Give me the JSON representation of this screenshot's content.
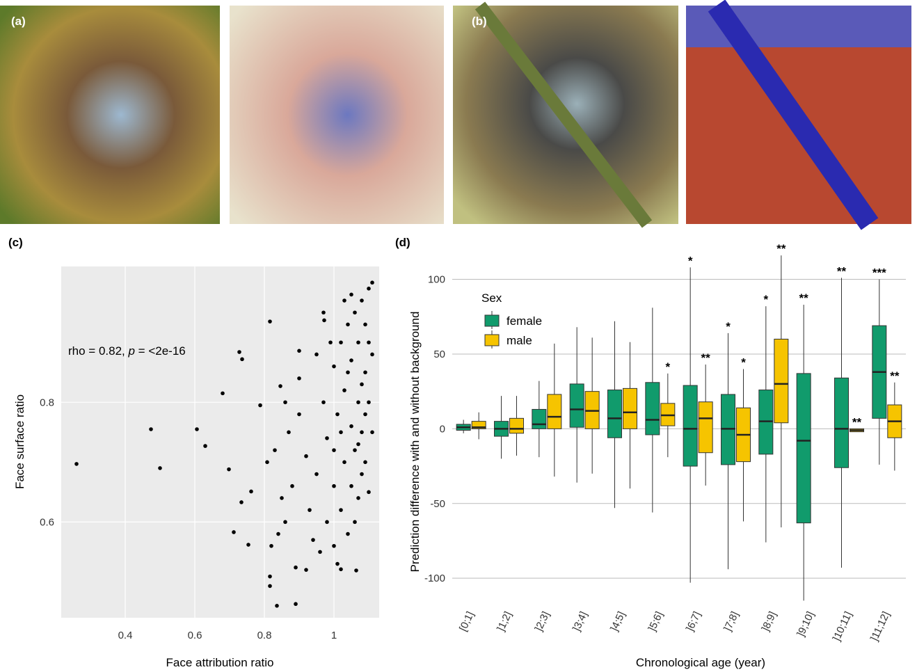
{
  "panel_labels": [
    "(a)",
    "(b)",
    "(c)",
    "(d)"
  ],
  "chart_data": [
    {
      "type": "scatter",
      "annotation": [
        "rho = 0.82, ",
        "p",
        " = <2e-16"
      ],
      "x_label": "Face attribution ratio",
      "y_label": "Face surface ratio",
      "xlim": [
        0.216,
        1.13
      ],
      "ylim": [
        0.44,
        1.027
      ],
      "xticks": [
        0.4,
        0.6,
        0.8,
        1.0
      ],
      "yticks": [
        0.6,
        0.8
      ],
      "grid": true,
      "color": "#000000",
      "x": [
        0.26,
        0.474,
        0.5,
        0.606,
        0.63,
        0.68,
        0.698,
        0.728,
        0.736,
        0.734,
        0.712,
        0.754,
        0.762,
        0.816,
        0.816,
        0.816,
        0.836,
        0.89,
        0.89,
        0.808,
        0.788,
        0.846,
        0.9,
        0.972,
        1.064,
        1.02,
        0.82,
        0.84,
        0.86,
        0.85,
        0.88,
        0.83,
        0.87,
        0.9,
        0.86,
        0.9,
        0.92,
        0.93,
        0.94,
        0.96,
        0.95,
        0.97,
        0.95,
        0.98,
        0.98,
        1.0,
        1.01,
        0.92,
        1.0,
        1.0,
        1.0,
        1.01,
        1.02,
        1.02,
        1.03,
        1.03,
        1.04,
        1.04,
        1.05,
        1.05,
        1.05,
        1.06,
        1.06,
        1.06,
        1.07,
        1.07,
        1.07,
        1.08,
        1.08,
        1.08,
        1.09,
        1.09,
        1.09,
        1.1,
        1.1,
        1.1,
        1.11,
        1.11,
        1.11,
        1.1,
        1.09,
        1.08,
        1.07,
        1.04,
        1.02,
        0.99,
        0.97,
        1.03,
        1.05
      ],
      "y": [
        0.697,
        0.755,
        0.69,
        0.755,
        0.727,
        0.815,
        0.688,
        0.884,
        0.872,
        0.633,
        0.583,
        0.562,
        0.651,
        0.935,
        0.509,
        0.493,
        0.46,
        0.463,
        0.524,
        0.7,
        0.795,
        0.827,
        0.886,
        0.937,
        0.519,
        0.521,
        0.56,
        0.58,
        0.6,
        0.64,
        0.66,
        0.72,
        0.75,
        0.78,
        0.8,
        0.84,
        0.71,
        0.62,
        0.57,
        0.55,
        0.68,
        0.8,
        0.88,
        0.74,
        0.6,
        0.56,
        0.53,
        0.52,
        0.66,
        0.72,
        0.86,
        0.78,
        0.62,
        0.9,
        0.7,
        0.82,
        0.58,
        0.93,
        0.66,
        0.76,
        0.87,
        0.6,
        0.72,
        0.95,
        0.64,
        0.8,
        0.9,
        0.68,
        0.75,
        0.97,
        0.7,
        0.85,
        0.93,
        0.65,
        0.8,
        0.99,
        0.75,
        0.88,
        1.0,
        0.9,
        0.78,
        0.83,
        0.73,
        0.85,
        0.75,
        0.9,
        0.95,
        0.97,
        0.98
      ]
    },
    {
      "type": "box",
      "x_label": "Chronological age (year)",
      "y_label": "Prediction difference with and without background",
      "legend_title": "Sex",
      "categories": [
        "[0;1]",
        "]1;2]",
        "]2;3]",
        "]3;4]",
        "]4;5]",
        "]5;6]",
        "]6;7]",
        "]7;8]",
        "]8;9]",
        "]9;10]",
        "]10;11]",
        "]11;12]"
      ],
      "ylim": [
        -119,
        124
      ],
      "yticks": [
        -100,
        -50,
        0,
        50,
        100
      ],
      "grid": true,
      "series": [
        {
          "name": "female",
          "color": "#119b6c",
          "low": [
            -3,
            -20,
            -19,
            -36,
            -53,
            -56,
            -103,
            -94,
            -76,
            -115,
            -93,
            -24
          ],
          "q1": [
            -1,
            -5,
            0,
            1,
            -6,
            -4,
            -25,
            -24,
            -17,
            -63,
            -26,
            7
          ],
          "median": [
            1,
            0,
            3,
            13,
            7,
            6,
            0,
            0,
            5,
            -8,
            0,
            38
          ],
          "q3": [
            3,
            5,
            13,
            30,
            26,
            31,
            29,
            23,
            26,
            37,
            34,
            69
          ],
          "high": [
            6,
            22,
            32,
            68,
            72,
            81,
            108,
            64,
            82,
            83,
            101,
            100
          ],
          "significance": [
            null,
            null,
            null,
            null,
            null,
            null,
            "*",
            "*",
            "*",
            "**",
            "**",
            "***"
          ]
        },
        {
          "name": "male",
          "color": "#f6c400",
          "low": [
            -7,
            -18,
            -32,
            -30,
            -40,
            -19,
            -38,
            -62,
            -66,
            null,
            -2,
            -28
          ],
          "q1": [
            0,
            -3,
            0,
            0,
            0,
            2,
            -16,
            -22,
            4,
            null,
            -2,
            -6
          ],
          "median": [
            1,
            0,
            8,
            12,
            11,
            9,
            7,
            -4,
            30,
            null,
            -1,
            5
          ],
          "q3": [
            5,
            7,
            23,
            25,
            27,
            17,
            18,
            14,
            60,
            null,
            0,
            16
          ],
          "high": [
            11,
            22,
            57,
            61,
            58,
            37,
            43,
            40,
            116,
            null,
            0,
            31
          ],
          "significance": [
            null,
            null,
            null,
            null,
            null,
            "*",
            "**",
            "*",
            "**",
            null,
            "**",
            "**"
          ]
        }
      ]
    }
  ]
}
